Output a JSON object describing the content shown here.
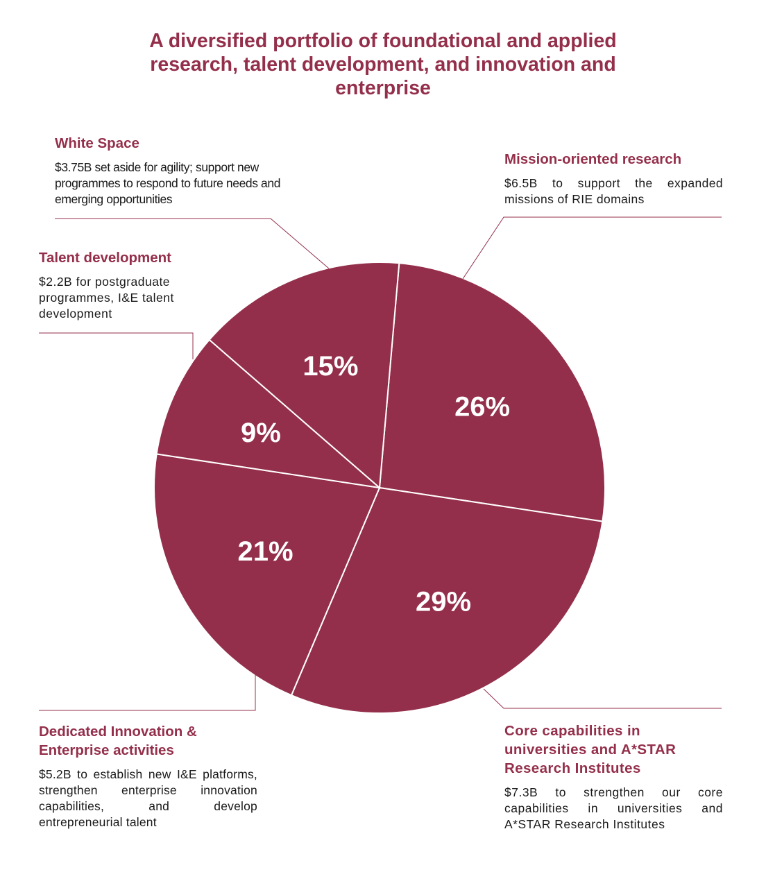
{
  "title": "A diversified portfolio of foundational and applied research, talent development, and innovation and enterprise",
  "chart_data": {
    "type": "pie",
    "title": "A diversified portfolio of foundational and applied research, talent development, and innovation and enterprise",
    "color": "#942f4b",
    "slices": [
      {
        "id": "mission",
        "label": "Mission-oriented research",
        "value": 26,
        "value_label": "26%",
        "amount": "$6.5B",
        "description": "$6.5B to support the expanded missions of RIE domains"
      },
      {
        "id": "core",
        "label": "Core capabilities in universities and A*STAR Research Institutes",
        "value": 29,
        "value_label": "29%",
        "amount": "$7.3B",
        "description": "$7.3B to strengthen our core capabilities in universities and A*STAR Research Institutes"
      },
      {
        "id": "innovation",
        "label": "Dedicated Innovation & Enterprise activities",
        "value": 21,
        "value_label": "21%",
        "amount": "$5.2B",
        "description": "$5.2B to establish new I&E platforms, strengthen enterprise innovation capabilities, and develop entrepreneurial talent"
      },
      {
        "id": "talent",
        "label": "Talent development",
        "value": 9,
        "value_label": "9%",
        "amount": "$2.2B",
        "description": "$2.2B for postgraduate programmes, I&E talent development"
      },
      {
        "id": "whitespace",
        "label": "White Space",
        "value": 15,
        "value_label": "15%",
        "amount": "$3.75B",
        "description": "$3.75B set aside for agility; support new programmes to respond to future needs and emerging opportunities"
      }
    ]
  },
  "callouts": {
    "white_space": {
      "title": "White Space",
      "desc": "$3.75B set aside for agility; support new programmes to respond to future needs and emerging opportunities"
    },
    "mission": {
      "title": "Mission-oriented research",
      "desc": "$6.5B to support the expanded missions of RIE domains"
    },
    "talent": {
      "title": "Talent development",
      "desc": "$2.2B for postgraduate programmes, I&E talent development"
    },
    "innovation": {
      "title": "Dedicated Innovation & Enterprise activities",
      "desc": "$5.2B to establish new I&E platforms, strengthen enterprise innovation capabilities, and develop entrepreneurial talent"
    },
    "core": {
      "title": "Core capabilities in universities and A*STAR Research Institutes",
      "desc": "$7.3B to strengthen our core capabilities in universities and A*STAR Research Institutes"
    }
  }
}
